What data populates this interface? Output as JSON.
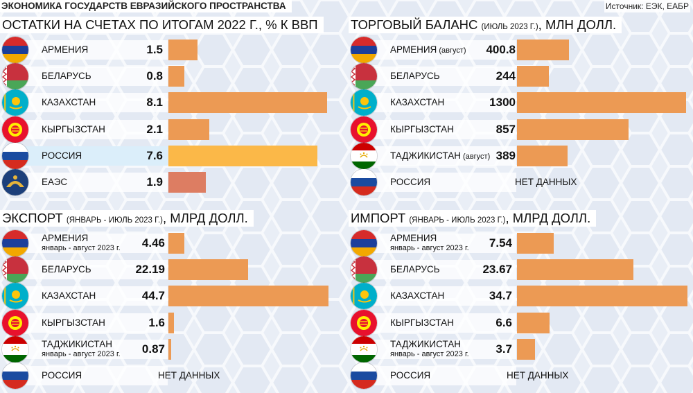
{
  "header": {
    "title": "ЭКОНОМИКА ГОСУДАРСТВ ЕВРАЗИЙСКОГО ПРОСТРАНСТВА",
    "source": "Источник: ЕЭК, ЕАБР"
  },
  "colors": {
    "bar": "#ec9a54",
    "bar_highlight": "#fbb848",
    "bar_eaes": "#dd7d62",
    "background": "#e9eef6"
  },
  "chart_data": [
    {
      "type": "bar",
      "orientation": "horizontal",
      "title": "ОСТАТКИ НА СЧЕТАХ ПО ИТОГАМ 2022 Г., % К ВВП",
      "title_main": "ОСТАТКИ НА СЧЕТАХ ПО ИТОГАМ 2022 Г., % К ВВП",
      "title_small": "",
      "title_tail": "",
      "categories": [
        "АРМЕНИЯ",
        "БЕЛАРУСЬ",
        "КАЗАХСТАН",
        "КЫРГЫЗСТАН",
        "РОССИЯ",
        "ЕАЭС"
      ],
      "values": [
        1.5,
        0.8,
        8.1,
        2.1,
        7.6,
        1.9
      ],
      "xlim": [
        0,
        8.3
      ],
      "rows": [
        {
          "name": "АРМЕНИЯ",
          "flag": "armenia-flag",
          "value": 1.5,
          "label": "1.5"
        },
        {
          "name": "БЕЛАРУСЬ",
          "flag": "belarus-flag",
          "value": 0.8,
          "label": "0.8"
        },
        {
          "name": "КАЗАХСТАН",
          "flag": "kazakhstan-flag",
          "value": 8.1,
          "label": "8.1"
        },
        {
          "name": "КЫРГЫЗСТАН",
          "flag": "kyrgyzstan-flag",
          "value": 2.1,
          "label": "2.1"
        },
        {
          "name": "РОССИЯ",
          "flag": "russia-flag",
          "value": 7.6,
          "label": "7.6",
          "highlight": true
        },
        {
          "name": "ЕАЭС",
          "flag": "eaeu-emblem",
          "value": 1.9,
          "label": "1.9",
          "eaes": true
        }
      ]
    },
    {
      "type": "bar",
      "orientation": "horizontal",
      "title": "ТОРГОВЫЙ БАЛАНС (ИЮЛЬ 2023 Г.), МЛН ДОЛЛ.",
      "title_main": "ТОРГОВЫЙ БАЛАНС ",
      "title_small": "(ИЮЛЬ 2023 Г.)",
      "title_tail": ", МЛН ДОЛЛ.",
      "categories": [
        "АРМЕНИЯ (август)",
        "БЕЛАРУСЬ",
        "КАЗАХСТАН",
        "КЫРГЫЗСТАН",
        "ТАДЖИКИСТАН (август)",
        "РОССИЯ"
      ],
      "values": [
        400.8,
        244,
        1300,
        857,
        389,
        null
      ],
      "xlim": [
        0,
        1330
      ],
      "rows": [
        {
          "name": "АРМЕНИЯ",
          "name_small": "(август)",
          "flag": "armenia-flag",
          "value": 400.8,
          "label": "400.8"
        },
        {
          "name": "БЕЛАРУСЬ",
          "flag": "belarus-flag",
          "value": 244,
          "label": "244"
        },
        {
          "name": "КАЗАХСТАН",
          "flag": "kazakhstan-flag",
          "value": 1300,
          "label": "1300"
        },
        {
          "name": "КЫРГЫЗСТАН",
          "flag": "kyrgyzstan-flag",
          "value": 857,
          "label": "857"
        },
        {
          "name": "ТАДЖИКИСТАН",
          "name_small": "(август)",
          "flag": "tajikistan-flag",
          "value": 389,
          "label": "389"
        },
        {
          "name": "РОССИЯ",
          "flag": "russia-flag",
          "value": null,
          "nodata": "НЕТ ДАННЫХ"
        }
      ]
    },
    {
      "type": "bar",
      "orientation": "horizontal",
      "title": "ЭКСПОРТ (ЯНВАРЬ - ИЮЛЬ 2023 Г.), МЛРД ДОЛЛ.",
      "title_main": "ЭКСПОРТ ",
      "title_small": "(ЯНВАРЬ - ИЮЛЬ 2023 Г.)",
      "title_tail": ", МЛРД ДОЛЛ.",
      "categories": [
        "АРМЕНИЯ",
        "БЕЛАРУСЬ",
        "КАЗАХСТАН",
        "КЫРГЫЗСТАН",
        "ТАДЖИКИСТАН",
        "РОССИЯ"
      ],
      "values": [
        4.46,
        22.19,
        44.7,
        1.6,
        0.87,
        null
      ],
      "xlim": [
        0,
        45.5
      ],
      "rows": [
        {
          "name": "АРМЕНИЯ",
          "sub": "январь - август 2023 г.",
          "flag": "armenia-flag",
          "value": 4.46,
          "label": "4.46"
        },
        {
          "name": "БЕЛАРУСЬ",
          "flag": "belarus-flag",
          "value": 22.19,
          "label": "22.19"
        },
        {
          "name": "КАЗАХСТАН",
          "flag": "kazakhstan-flag",
          "value": 44.7,
          "label": "44.7"
        },
        {
          "name": "КЫРГЫЗСТАН",
          "flag": "kyrgyzstan-flag",
          "value": 1.6,
          "label": "1.6"
        },
        {
          "name": "ТАДЖИКИСТАН",
          "sub": "январь - август 2023 г.",
          "flag": "tajikistan-flag",
          "value": 0.87,
          "label": "0.87"
        },
        {
          "name": "РОССИЯ",
          "flag": "russia-flag",
          "value": null,
          "nodata": "НЕТ ДАННЫХ"
        }
      ]
    },
    {
      "type": "bar",
      "orientation": "horizontal",
      "title": "ИМПОРТ (ЯНВАРЬ - ИЮЛЬ 2023 Г.), МЛРД ДОЛЛ.",
      "title_main": "ИМПОРТ ",
      "title_small": "(ЯНВАРЬ - ИЮЛЬ 2023 Г.)",
      "title_tail": ", МЛРД ДОЛЛ.",
      "categories": [
        "АРМЕНИЯ",
        "БЕЛАРУСЬ",
        "КАЗАХСТАН",
        "КЫРГЫЗСТАН",
        "ТАДЖИКИСТАН",
        "РОССИЯ"
      ],
      "values": [
        7.54,
        23.67,
        34.7,
        6.6,
        3.7,
        null
      ],
      "xlim": [
        0,
        35.3
      ],
      "rows": [
        {
          "name": "АРМЕНИЯ",
          "sub": "январь - август 2023 г.",
          "flag": "armenia-flag",
          "value": 7.54,
          "label": "7.54"
        },
        {
          "name": "БЕЛАРУСЬ",
          "flag": "belarus-flag",
          "value": 23.67,
          "label": "23.67"
        },
        {
          "name": "КАЗАХСТАН",
          "flag": "kazakhstan-flag",
          "value": 34.7,
          "label": "34.7"
        },
        {
          "name": "КЫРГЫЗСТАН",
          "flag": "kyrgyzstan-flag",
          "value": 6.6,
          "label": "6.6"
        },
        {
          "name": "ТАДЖИКИСТАН",
          "sub": "январь - август 2023 г.",
          "flag": "tajikistan-flag",
          "value": 3.7,
          "label": "3.7"
        },
        {
          "name": "РОССИЯ",
          "flag": "russia-flag",
          "value": null,
          "nodata": "НЕТ ДАННЫХ"
        }
      ]
    }
  ]
}
